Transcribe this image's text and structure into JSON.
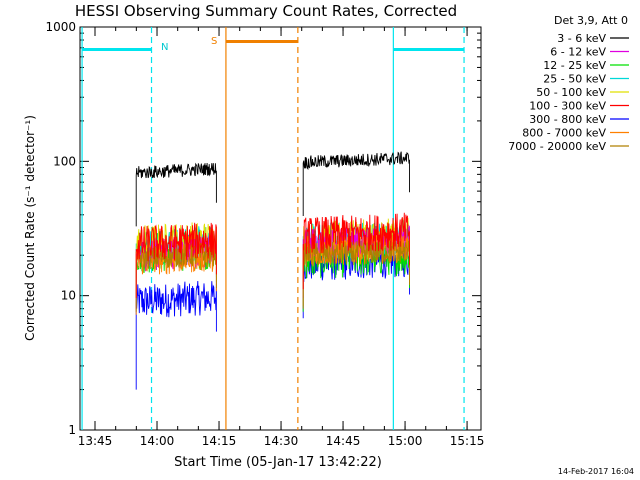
{
  "chart_data": {
    "type": "line",
    "title": "HESSI Observing Summary Count Rates, Corrected",
    "xlabel": "Start Time (05-Jan-17 13:42:22)",
    "ylabel": "Corrected Count Rate (s⁻¹ detector⁻¹)",
    "y_scale": "log",
    "ylim": [
      1,
      1000
    ],
    "xlim_minutes_since_start": [
      0,
      97
    ],
    "x_tick_labels": [
      "13:45",
      "14:00",
      "14:15",
      "14:30",
      "14:45",
      "15:00",
      "15:15"
    ],
    "x_tick_minutes": [
      3.63,
      18.63,
      33.63,
      48.63,
      63.63,
      78.63,
      93.63
    ],
    "y_tick_labels": [
      "1",
      "10",
      "100",
      "1000"
    ],
    "y_tick_values": [
      1,
      10,
      100,
      1000
    ],
    "legend_title": "Det 3,9, Att 0",
    "legend_position": "top-right",
    "footer_date": "14-Feb-2017 16:04",
    "flag_labels": {
      "night": "N",
      "saa": "S"
    },
    "flags": [
      {
        "name": "night-bar",
        "color": "#00e5ee",
        "start": 0.5,
        "end": 17.3,
        "level": 680
      },
      {
        "name": "saa-bar",
        "color": "#f08000",
        "start": 35.3,
        "end": 52.7,
        "level": 780
      },
      {
        "name": "night-bar",
        "color": "#00e5ee",
        "start": 75.8,
        "end": 92.9,
        "level": 680
      }
    ],
    "markers": [
      {
        "color": "#00e5ee",
        "minute": 0.5,
        "style": "solid"
      },
      {
        "color": "#00e5ee",
        "minute": 17.3,
        "style": "dashed"
      },
      {
        "color": "#f08000",
        "minute": 35.3,
        "style": "solid"
      },
      {
        "color": "#f08000",
        "minute": 52.7,
        "style": "dashed"
      },
      {
        "color": "#00e5ee",
        "minute": 75.8,
        "style": "solid"
      },
      {
        "color": "#00e5ee",
        "minute": 92.9,
        "style": "dashed"
      }
    ],
    "segments": [
      [
        13.6,
        33.0
      ],
      [
        54.0,
        79.7
      ]
    ],
    "series": [
      {
        "name": "3 - 6 keV",
        "color": "#000000",
        "levels": [
          82,
          98
        ],
        "noise": 0.05
      },
      {
        "name": "6 - 12 keV",
        "color": "#e000e0",
        "levels": [
          20,
          24
        ],
        "noise": 0.12
      },
      {
        "name": "12 - 25 keV",
        "color": "#00e000",
        "levels": [
          21,
          19
        ],
        "noise": 0.16
      },
      {
        "name": "25 - 50 keV",
        "color": "#00d8d8",
        "levels": [
          23,
          25
        ],
        "noise": 0.14
      },
      {
        "name": "50 - 100 keV",
        "color": "#e0e000",
        "levels": [
          24,
          25
        ],
        "noise": 0.15
      },
      {
        "name": "100 - 300 keV",
        "color": "#ff0000",
        "levels": [
          24,
          28
        ],
        "noise": 0.14
      },
      {
        "name": "300 - 800 keV",
        "color": "#0000ff",
        "levels": [
          9,
          17
        ],
        "noise": 0.13
      },
      {
        "name": "800 - 7000 keV",
        "color": "#ff8000",
        "levels": [
          18,
          21
        ],
        "noise": 0.11
      },
      {
        "name": "7000 - 20000 keV",
        "color": "#b08000",
        "levels": [
          19,
          20
        ],
        "noise": 0.09
      }
    ]
  }
}
